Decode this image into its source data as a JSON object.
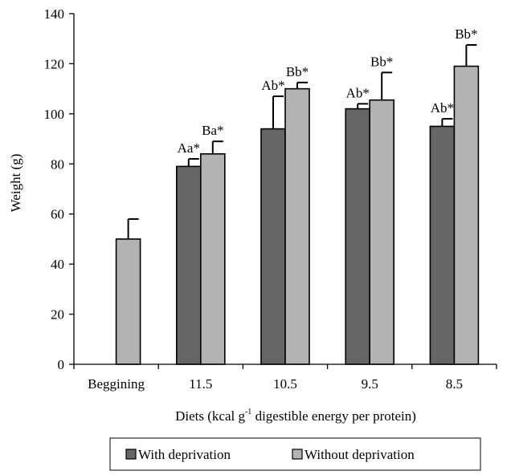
{
  "chart_data": {
    "type": "bar",
    "categories": [
      "Beggining",
      "11.5",
      "10.5",
      "9.5",
      "8.5"
    ],
    "series": [
      {
        "name": "With deprivation",
        "color": "#666666",
        "values": [
          null,
          79,
          94,
          102,
          95
        ],
        "errors": [
          null,
          3,
          13,
          2,
          3
        ],
        "labels": [
          "",
          "Aa*",
          "Ab*",
          "Ab*",
          "Ab*"
        ]
      },
      {
        "name": "Without deprivation",
        "color": "#b3b3b3",
        "values": [
          50,
          84,
          110,
          105.5,
          119
        ],
        "errors": [
          8,
          5,
          2.5,
          11,
          8.5
        ],
        "labels": [
          "",
          "Ba*",
          "Bb*",
          "Bb*",
          "Bb*"
        ]
      }
    ],
    "ylabel": "Weight (g)",
    "xlabel_main": "Diets (kcal  g",
    "xlabel_sup": "-1",
    "xlabel_rest": " digestible energy per protein)",
    "ylim": [
      0,
      140
    ],
    "yticks": [
      0,
      20,
      40,
      60,
      80,
      100,
      120,
      140
    ],
    "grid": false,
    "legend_position": "bottom"
  }
}
